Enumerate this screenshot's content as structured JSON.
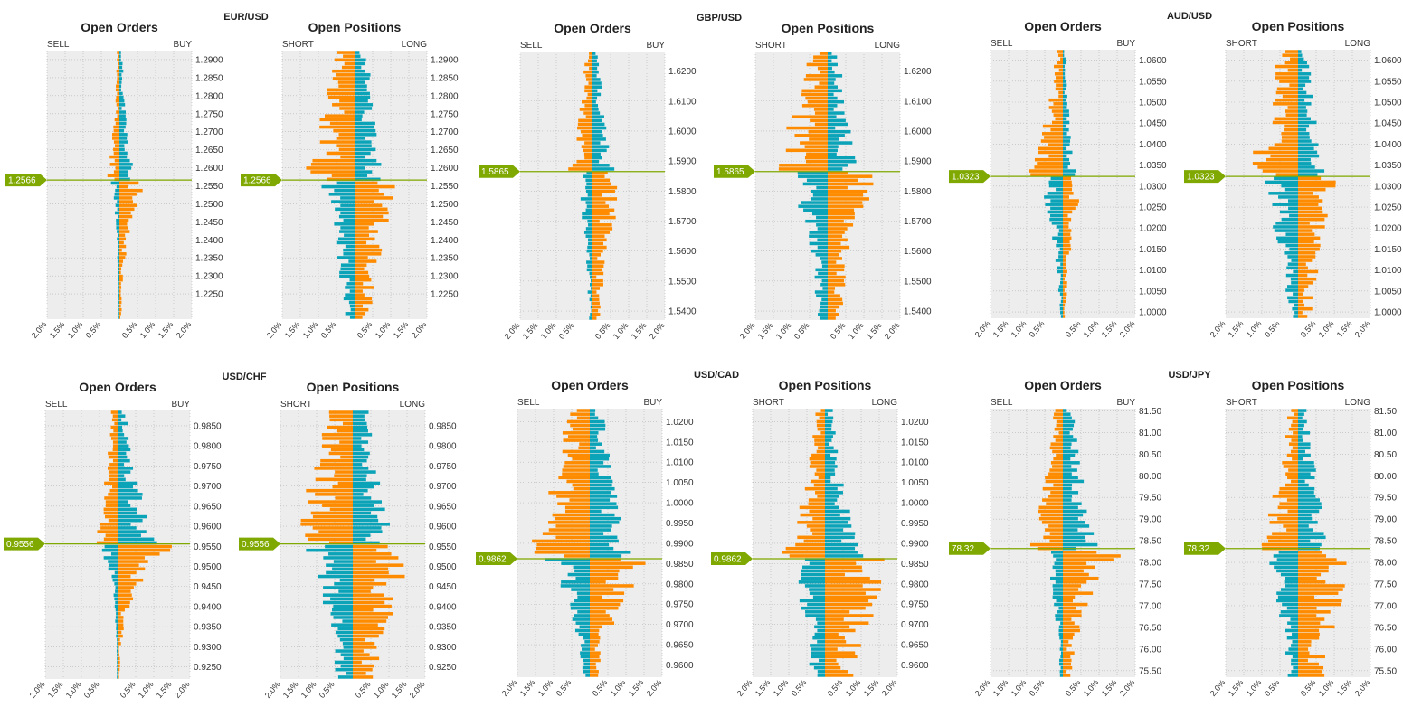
{
  "labels": {
    "orders_title": "Open Orders",
    "positions_title": "Open Positions",
    "sell": "SELL",
    "buy": "BUY",
    "short": "SHORT",
    "long": "LONG"
  },
  "colors": {
    "orange": "#FF8C00",
    "teal": "#0AA3B8",
    "price_line": "#7FA800",
    "plot_bg": "#EDEDED",
    "grid": "#B5B5B5"
  },
  "chart_data": [
    {
      "type": "bar",
      "pair": "EUR/USD",
      "current_price_label": "1.2566",
      "current_price": 1.2566,
      "ylim": [
        1.218,
        1.2925
      ],
      "yticks": [
        "1.2900",
        "1.2850",
        "1.2800",
        "1.2750",
        "1.2700",
        "1.2650",
        "1.2600",
        "1.2550",
        "1.2500",
        "1.2450",
        "1.2400",
        "1.2350",
        "1.2300",
        "1.2250"
      ],
      "xticks": [
        "2.0%",
        "1.5%",
        "1.0%",
        "0.5%",
        "0.5%",
        "1.0%",
        "1.5%",
        "2.0%"
      ],
      "xlim": [
        -2.0,
        2.0
      ],
      "orders": {
        "left_max": 0.4,
        "left_decay": 0.5,
        "right_max": 0.8,
        "right_decay": 0.35,
        "seed": 11
      },
      "positions": {
        "left_max": 1.55,
        "left_decay": 0.9,
        "right_max": 1.6,
        "right_decay": 0.7,
        "seed": 12
      }
    },
    {
      "type": "bar",
      "pair": "GBP/USD",
      "current_price_label": "1.5865",
      "current_price": 1.5865,
      "ylim": [
        1.537,
        1.6265
      ],
      "yticks": [
        "1.6200",
        "1.6100",
        "1.6000",
        "1.5900",
        "1.5800",
        "1.5700",
        "1.5600",
        "1.5500",
        "1.5400"
      ],
      "xticks": [
        "2.0%",
        "1.5%",
        "1.0%",
        "0.5%",
        "0.5%",
        "1.0%",
        "1.5%",
        "2.0%"
      ],
      "xlim": [
        -2.0,
        2.0
      ],
      "orders": {
        "left_max": 0.75,
        "left_decay": 0.6,
        "right_max": 1.1,
        "right_decay": 0.6,
        "seed": 21
      },
      "positions": {
        "left_max": 1.65,
        "left_decay": 0.8,
        "right_max": 1.5,
        "right_decay": 0.7,
        "seed": 22
      }
    },
    {
      "type": "bar",
      "pair": "AUD/USD",
      "current_price_label": "1.0323",
      "current_price": 1.0323,
      "ylim": [
        0.9985,
        1.0625
      ],
      "yticks": [
        "1.0600",
        "1.0550",
        "1.0500",
        "1.0450",
        "1.0400",
        "1.0350",
        "1.0300",
        "1.0250",
        "1.0200",
        "1.0150",
        "1.0100",
        "1.0050",
        "1.0000"
      ],
      "xticks": [
        "2.0%",
        "1.5%",
        "1.0%",
        "0.5%",
        "0.5%",
        "1.0%",
        "1.5%",
        "2.0%"
      ],
      "xlim": [
        -2.0,
        2.0
      ],
      "orders": {
        "left_max": 1.1,
        "left_decay": 0.5,
        "right_max": 0.7,
        "right_decay": 0.45,
        "seed": 31
      },
      "positions": {
        "left_max": 1.65,
        "left_decay": 0.8,
        "right_max": 1.4,
        "right_decay": 0.7,
        "seed": 32
      }
    },
    {
      "type": "bar",
      "pair": "USD/CHF",
      "current_price_label": "0.9556",
      "current_price": 0.9556,
      "ylim": [
        0.922,
        0.9888
      ],
      "yticks": [
        "0.9850",
        "0.9800",
        "0.9750",
        "0.9700",
        "0.9650",
        "0.9600",
        "0.9550",
        "0.9500",
        "0.9450",
        "0.9400",
        "0.9350",
        "0.9300",
        "0.9250"
      ],
      "xticks": [
        "2.0%",
        "1.5%",
        "1.0%",
        "0.5%",
        "0.5%",
        "1.0%",
        "1.5%",
        "2.0%"
      ],
      "xlim": [
        -2.0,
        2.0
      ],
      "orders": {
        "left_max": 0.8,
        "left_decay": 0.6,
        "right_max": 2.0,
        "right_decay": 0.25,
        "seed": 41
      },
      "positions": {
        "left_max": 2.0,
        "left_decay": 0.9,
        "right_max": 2.0,
        "right_decay": 0.85,
        "seed": 42
      }
    },
    {
      "type": "bar",
      "pair": "USD/CAD",
      "current_price_label": "0.9862",
      "current_price": 0.9862,
      "ylim": [
        0.957,
        1.0232
      ],
      "yticks": [
        "1.0200",
        "1.0150",
        "1.0100",
        "1.0050",
        "1.0000",
        "0.9950",
        "0.9900",
        "0.9850",
        "0.9800",
        "0.9750",
        "0.9700",
        "0.9650",
        "0.9600"
      ],
      "xticks": [
        "2.0%",
        "1.5%",
        "1.0%",
        "0.5%",
        "0.5%",
        "1.0%",
        "1.5%",
        "2.0%"
      ],
      "xlim": [
        -2.0,
        2.0
      ],
      "orders": {
        "left_max": 2.0,
        "left_decay": 0.9,
        "right_max": 2.0,
        "right_decay": 0.4,
        "seed": 51
      },
      "positions": {
        "left_max": 1.4,
        "left_decay": 0.6,
        "right_max": 2.0,
        "right_decay": 0.95,
        "seed": 52
      }
    },
    {
      "type": "bar",
      "pair": "USD/JPY",
      "current_price_label": "78.32",
      "current_price": 78.32,
      "ylim": [
        75.35,
        81.55
      ],
      "yticks": [
        "81.50",
        "81.00",
        "80.50",
        "80.00",
        "79.50",
        "79.00",
        "78.50",
        "78.00",
        "77.50",
        "77.00",
        "76.50",
        "76.00",
        "75.50"
      ],
      "xticks": [
        "2.0%",
        "1.5%",
        "1.0%",
        "0.5%",
        "0.5%",
        "1.0%",
        "1.5%",
        "2.0%"
      ],
      "xlim": [
        -2.0,
        2.0
      ],
      "orders": {
        "left_max": 1.0,
        "left_decay": 0.7,
        "right_max": 1.9,
        "right_decay": 0.4,
        "seed": 61
      },
      "positions": {
        "left_max": 1.3,
        "left_decay": 0.6,
        "right_max": 2.0,
        "right_decay": 0.85,
        "seed": 62
      }
    }
  ]
}
